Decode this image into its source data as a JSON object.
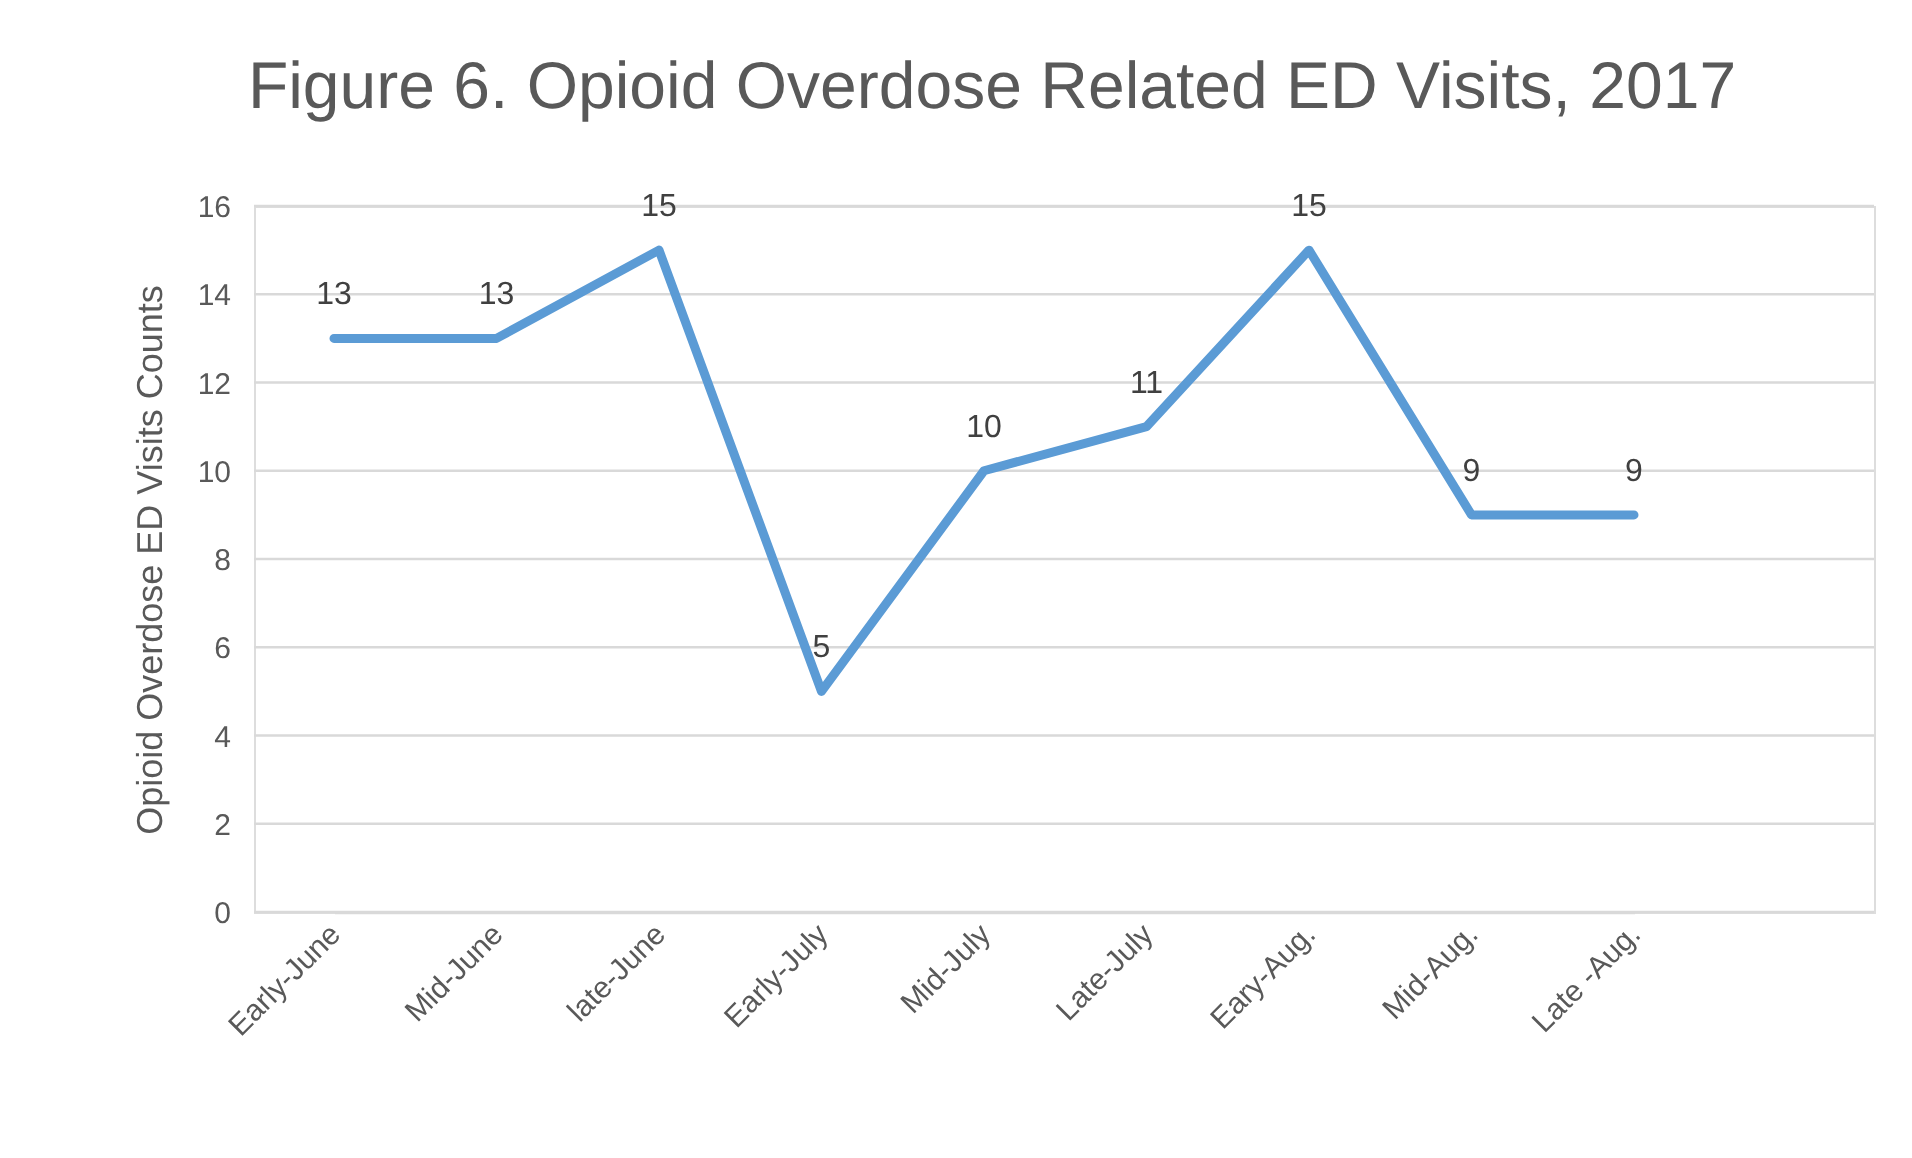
{
  "chart_data": {
    "type": "line",
    "title": "Figure 6. Opioid Overdose Related ED Visits, 2017",
    "ylabel": "Opioid Overdose ED Visits Counts",
    "categories": [
      "Early-June",
      "Mid-June",
      "late-June",
      "Early-July",
      "Mid-July",
      "Late-July",
      "Eary-Aug.",
      "Mid-Aug.",
      "Late -Aug."
    ],
    "values": [
      13,
      13,
      15,
      5,
      10,
      11,
      15,
      9,
      9
    ],
    "color": "#5b9bd5",
    "ylim": [
      0,
      16
    ],
    "yticks": [
      0,
      2,
      4,
      6,
      8,
      10,
      12,
      14,
      16
    ],
    "grid": "y",
    "data_labels": true,
    "line_style": "solid"
  }
}
